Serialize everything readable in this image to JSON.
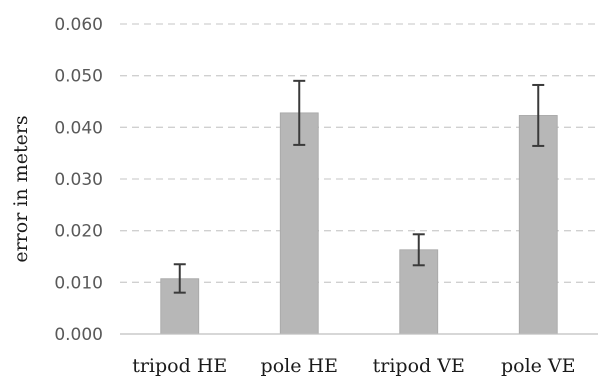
{
  "chart_data": {
    "type": "bar",
    "title": "",
    "xlabel": "",
    "ylabel": "error in meters",
    "categories": [
      "tripod HE",
      "pole HE",
      "tripod VE",
      "pole VE"
    ],
    "values": [
      0.0107,
      0.0428,
      0.0163,
      0.0423
    ],
    "error_low": [
      0.008,
      0.0366,
      0.0133,
      0.0364
    ],
    "error_high": [
      0.0135,
      0.049,
      0.0193,
      0.0482
    ],
    "ylim": [
      0,
      0.06
    ],
    "yticks": [
      "0.000",
      "0.010",
      "0.020",
      "0.030",
      "0.040",
      "0.050",
      "0.060"
    ],
    "grid": true,
    "legend": "none",
    "colors": {
      "bar": "#b7b7b7",
      "bar_edge": "#a6a6a6",
      "grid": "#d0d0d0",
      "error_bar": "#3a3a3a",
      "axis": "#bfbfbf"
    }
  }
}
